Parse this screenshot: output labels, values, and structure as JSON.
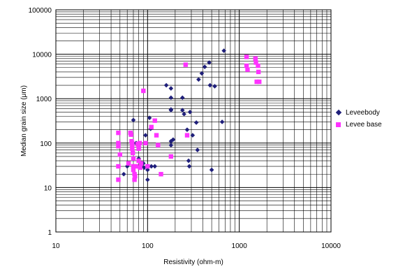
{
  "chart_data": {
    "type": "scatter",
    "xlabel": "Resistivity (ohm-m)",
    "ylabel": "Median grain size (μm)",
    "x_scale": "log",
    "y_scale": "log",
    "xlim": [
      10,
      10000
    ],
    "ylim": [
      1,
      100000
    ],
    "x_ticks": [
      "10",
      "100",
      "1000",
      "10000"
    ],
    "y_ticks": [
      "1",
      "10",
      "100",
      "1000",
      "10000",
      "100000"
    ],
    "grid": true,
    "legend_position": "right",
    "series": [
      {
        "name": "Leveebody",
        "marker": "diamond",
        "color": "#1f1f7a",
        "points": [
          [
            55,
            20
          ],
          [
            60,
            30
          ],
          [
            70,
            330
          ],
          [
            75,
            100
          ],
          [
            80,
            45
          ],
          [
            85,
            30
          ],
          [
            90,
            35
          ],
          [
            92,
            28
          ],
          [
            95,
            150
          ],
          [
            100,
            15
          ],
          [
            100,
            25
          ],
          [
            105,
            370
          ],
          [
            108,
            210
          ],
          [
            110,
            30
          ],
          [
            120,
            30
          ],
          [
            160,
            2000
          ],
          [
            180,
            1700
          ],
          [
            180,
            1050
          ],
          [
            180,
            570
          ],
          [
            180,
            550
          ],
          [
            180,
            110
          ],
          [
            180,
            90
          ],
          [
            190,
            120
          ],
          [
            240,
            1050
          ],
          [
            240,
            550
          ],
          [
            250,
            450
          ],
          [
            270,
            200
          ],
          [
            280,
            40
          ],
          [
            285,
            30
          ],
          [
            290,
            500
          ],
          [
            310,
            150
          ],
          [
            340,
            290
          ],
          [
            350,
            70
          ],
          [
            360,
            2700
          ],
          [
            390,
            3700
          ],
          [
            420,
            5200
          ],
          [
            470,
            6500
          ],
          [
            480,
            2000
          ],
          [
            500,
            25
          ],
          [
            540,
            1900
          ],
          [
            650,
            300
          ],
          [
            680,
            12000
          ]
        ]
      },
      {
        "name": "Levee base",
        "marker": "square",
        "color": "#ff33ff",
        "points": [
          [
            48,
            170
          ],
          [
            48,
            100
          ],
          [
            48,
            85
          ],
          [
            48,
            30
          ],
          [
            48,
            15
          ],
          [
            50,
            55
          ],
          [
            62,
            35
          ],
          [
            65,
            170
          ],
          [
            66,
            155
          ],
          [
            67,
            110
          ],
          [
            68,
            100
          ],
          [
            68,
            90
          ],
          [
            68,
            75
          ],
          [
            69,
            60
          ],
          [
            70,
            45
          ],
          [
            70,
            30
          ],
          [
            70,
            25
          ],
          [
            72,
            20
          ],
          [
            72,
            15
          ],
          [
            73,
            18
          ],
          [
            75,
            30
          ],
          [
            78,
            95
          ],
          [
            80,
            90
          ],
          [
            80,
            75
          ],
          [
            80,
            40
          ],
          [
            82,
            100
          ],
          [
            83,
            28
          ],
          [
            85,
            35
          ],
          [
            90,
            1500
          ],
          [
            95,
            100
          ],
          [
            100,
            30
          ],
          [
            110,
            230
          ],
          [
            120,
            320
          ],
          [
            125,
            150
          ],
          [
            130,
            90
          ],
          [
            140,
            20
          ],
          [
            180,
            50
          ],
          [
            260,
            5800
          ],
          [
            270,
            150
          ],
          [
            1200,
            8700
          ],
          [
            1200,
            5500
          ],
          [
            1230,
            4500
          ],
          [
            1500,
            8000
          ],
          [
            1520,
            6500
          ],
          [
            1550,
            2400
          ],
          [
            1600,
            5500
          ],
          [
            1620,
            4000
          ],
          [
            1650,
            2400
          ]
        ]
      }
    ]
  }
}
